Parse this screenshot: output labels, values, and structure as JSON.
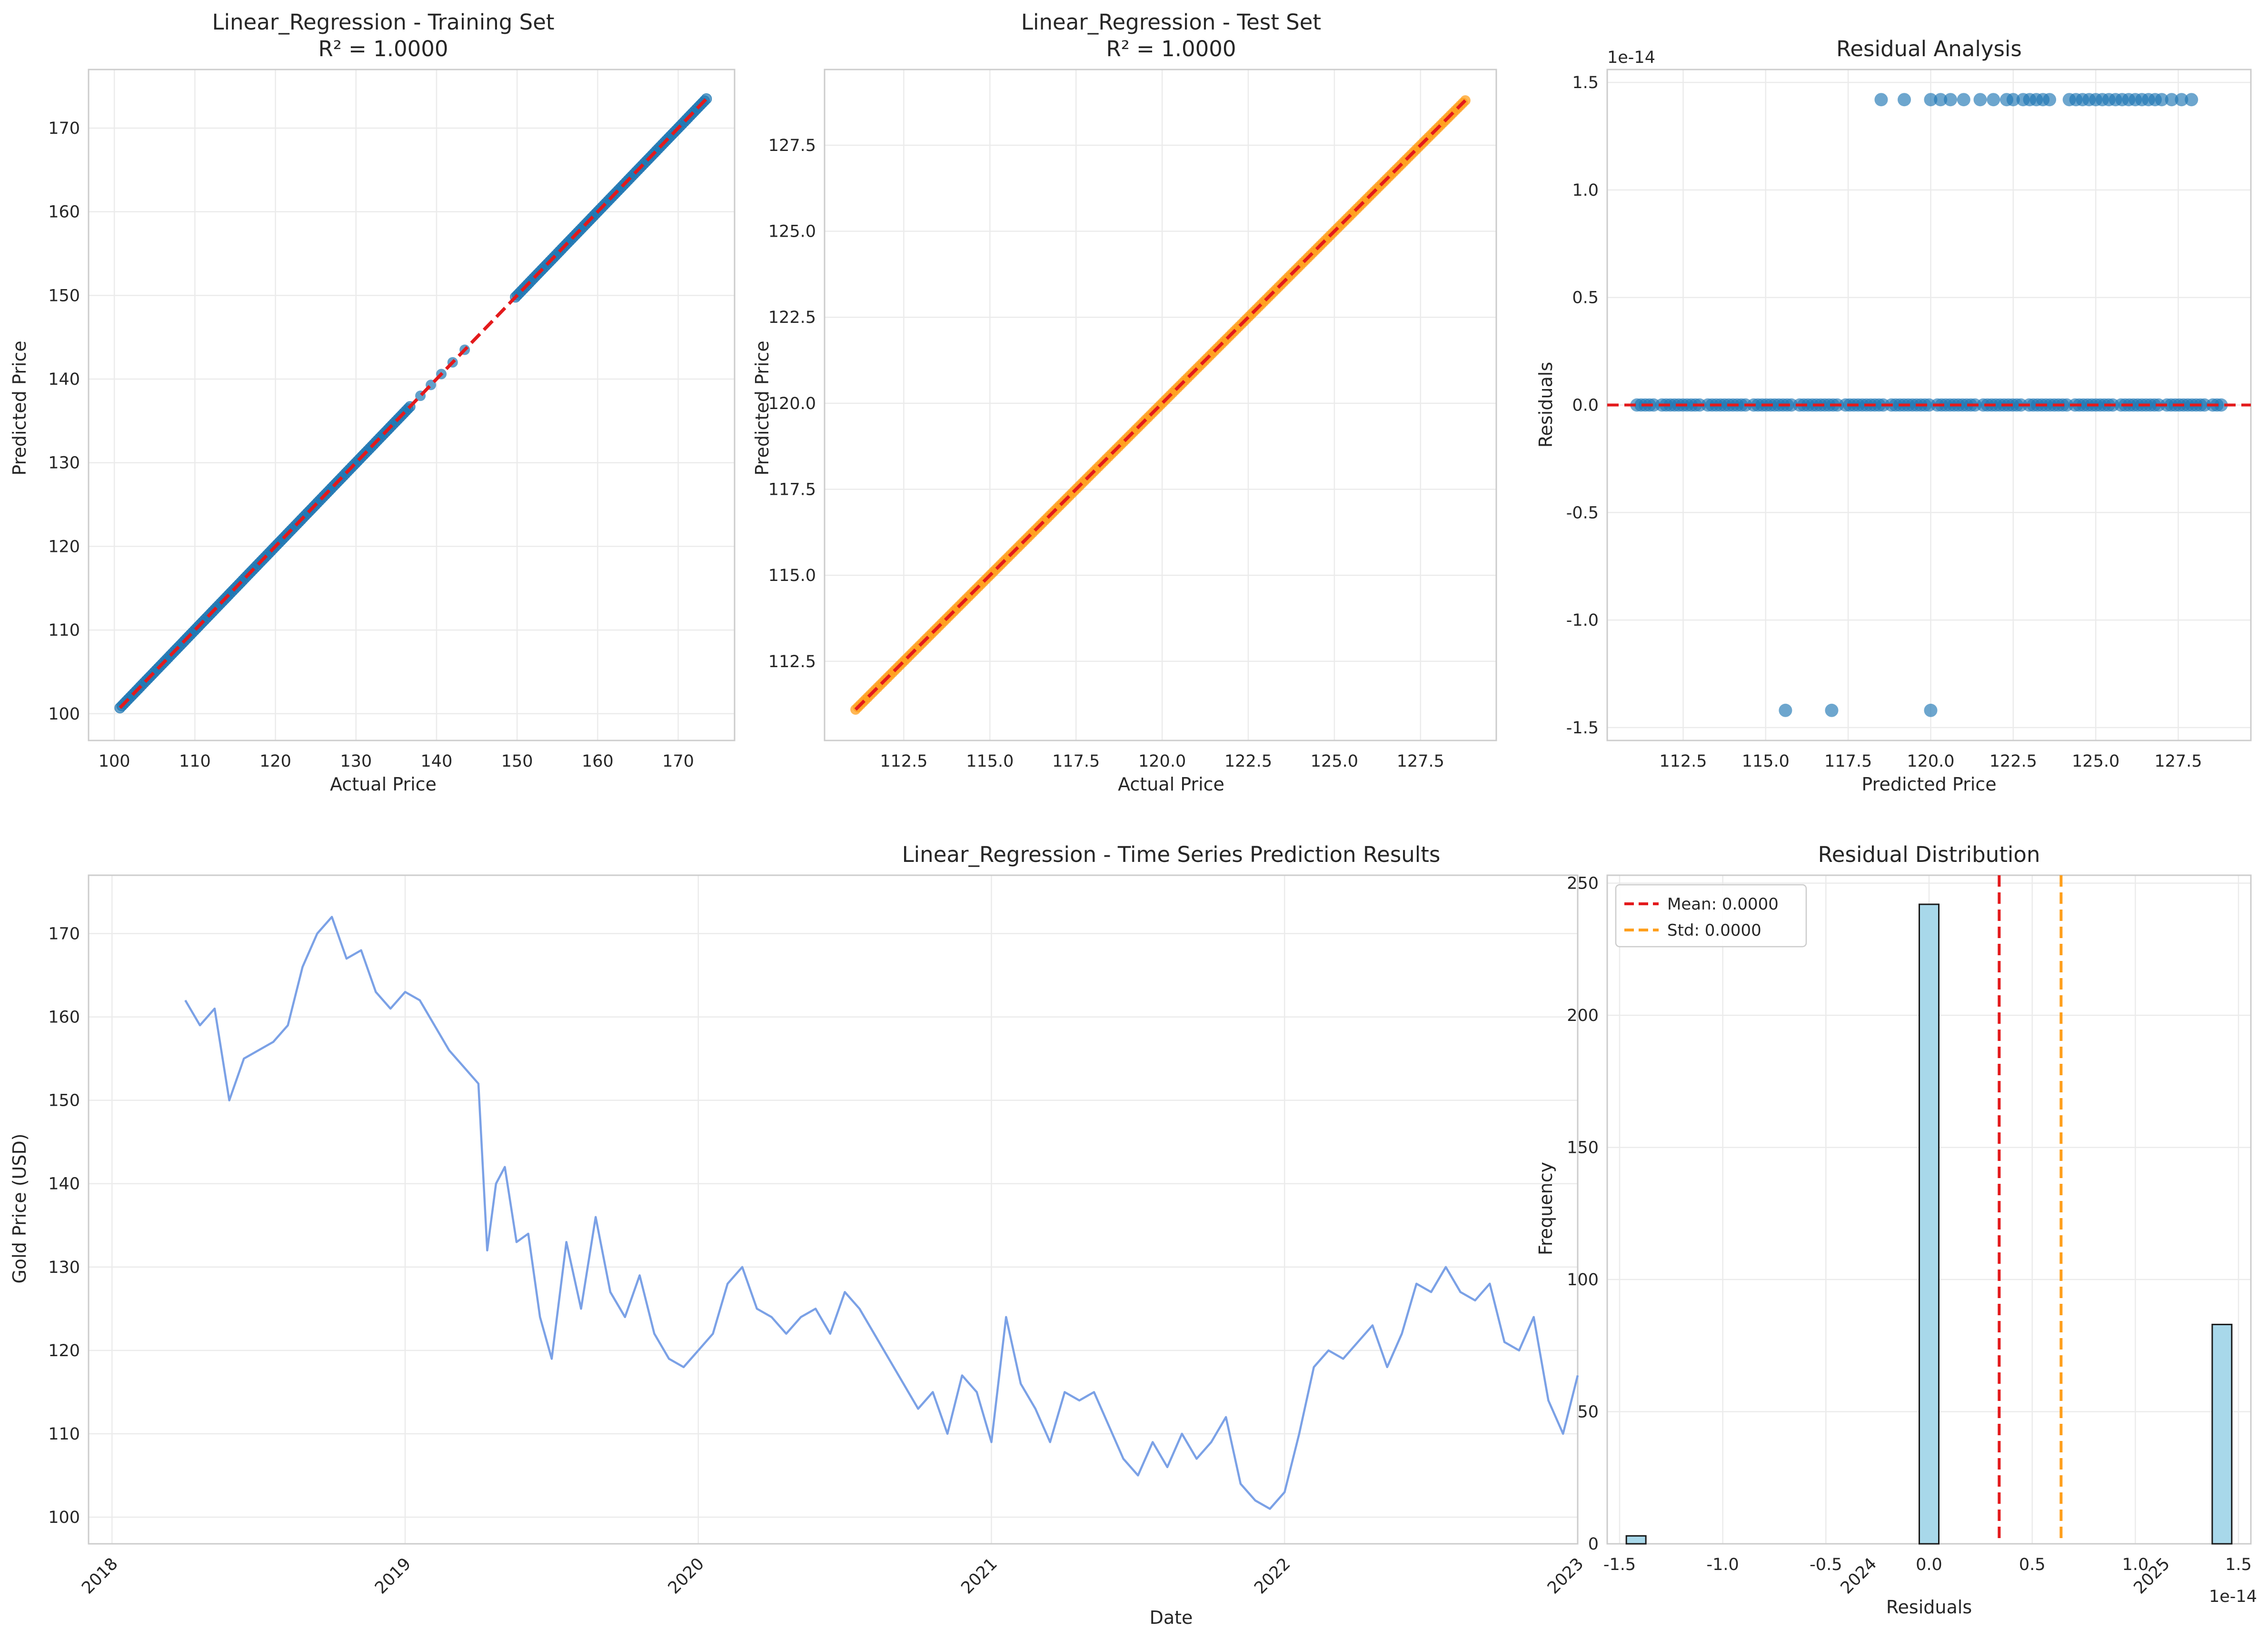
{
  "colors": {
    "blue": "#1f77b4",
    "orange": "#ff9f1c",
    "red": "#e31a1c",
    "series_line": "#7ba1e6",
    "hist_fill": "#a8d8ea",
    "grid": "#ebebeb",
    "frame": "#cccccc"
  },
  "chart_data": [
    {
      "id": "training",
      "type": "scatter",
      "title": "Linear_Regression - Training Set",
      "subtitle": "R² = 1.0000",
      "xlabel": "Actual Price",
      "ylabel": "Predicted Price",
      "xlim": [
        96.8,
        177.0
      ],
      "ylim": [
        96.8,
        177.0
      ],
      "xticks": [
        100,
        110,
        120,
        130,
        140,
        150,
        160,
        170
      ],
      "yticks": [
        100,
        110,
        120,
        130,
        140,
        150,
        160,
        170
      ],
      "grid": true,
      "series": [
        {
          "kind": "points",
          "color": "blue",
          "segments": [
            [
              100.7,
              136.7
            ],
            [
              149.8,
              173.5
            ]
          ],
          "extra_points": [
            138.0,
            139.3,
            140.6,
            142.0,
            143.5
          ]
        },
        {
          "kind": "reference",
          "style": "dashed",
          "color": "red",
          "x": [
            100.7,
            173.5
          ],
          "y": [
            100.7,
            173.5
          ]
        }
      ]
    },
    {
      "id": "test",
      "type": "scatter",
      "title": "Linear_Regression - Test Set",
      "subtitle": "R² = 1.0000",
      "xlabel": "Actual Price",
      "ylabel": "Predicted Price",
      "xlim": [
        110.2,
        129.7
      ],
      "ylim": [
        110.2,
        129.7
      ],
      "xticks": [
        "112.5",
        "115.0",
        "117.5",
        "120.0",
        "122.5",
        "125.0",
        "127.5"
      ],
      "yticks": [
        "112.5",
        "115.0",
        "117.5",
        "120.0",
        "122.5",
        "125.0",
        "127.5"
      ],
      "grid": true,
      "series": [
        {
          "kind": "points",
          "color": "orange",
          "segments": [
            [
              111.1,
              128.8
            ]
          ]
        },
        {
          "kind": "reference",
          "style": "dashed",
          "color": "red",
          "x": [
            111.1,
            128.8
          ],
          "y": [
            111.1,
            128.8
          ]
        }
      ]
    },
    {
      "id": "residual-analysis",
      "type": "scatter",
      "title": "Residual Analysis",
      "xlabel": "Predicted Price",
      "ylabel": "Residuals",
      "offset_text": "1e-14",
      "xlim": [
        110.2,
        129.7
      ],
      "ylim": [
        -1.56,
        1.56
      ],
      "xticks": [
        "112.5",
        "115.0",
        "117.5",
        "120.0",
        "122.5",
        "125.0",
        "127.5"
      ],
      "yticks": [
        "-1.5",
        "-1.0",
        "-0.5",
        "0.0",
        "0.5",
        "1.0",
        "1.5"
      ],
      "grid": true,
      "zero_line": {
        "y": 0,
        "style": "dashed",
        "color": "red"
      },
      "point_color": "blue",
      "groups": [
        {
          "y": 0.0,
          "x_range": [
            111.1,
            128.8
          ]
        },
        {
          "y": 1.42,
          "x": [
            118.5,
            119.2,
            120.0,
            120.3,
            120.6,
            121.0,
            121.5,
            121.9,
            122.3,
            122.5,
            122.8,
            123.0,
            123.2,
            123.4,
            123.6,
            124.2,
            124.4,
            124.6,
            124.8,
            125.0,
            125.2,
            125.4,
            125.6,
            125.8,
            126.0,
            126.2,
            126.4,
            126.6,
            126.8,
            127.0,
            127.3,
            127.6,
            127.9
          ]
        },
        {
          "y": -1.42,
          "x": [
            115.6,
            117.0,
            120.0
          ]
        }
      ]
    },
    {
      "id": "time-series",
      "type": "line",
      "title": "Linear_Regression - Time Series Prediction Results",
      "xlabel": "Date",
      "ylabel": "Gold Price (USD)",
      "xlim": [
        2017.92,
        2023.0
      ],
      "ylim": [
        96.8,
        177.0
      ],
      "xticks": [
        "2018",
        "2019",
        "2020",
        "2021",
        "2022",
        "2023",
        "2024",
        "2025"
      ],
      "yticks": [
        100,
        110,
        120,
        130,
        140,
        150,
        160,
        170
      ],
      "grid": true,
      "series": [
        {
          "color": "series_line",
          "x": [
            2018.25,
            2018.3,
            2018.35,
            2018.4,
            2018.45,
            2018.5,
            2018.55,
            2018.6,
            2018.65,
            2018.7,
            2018.75,
            2018.8,
            2018.85,
            2018.9,
            2018.95,
            2019.0,
            2019.05,
            2019.1,
            2019.15,
            2019.2,
            2019.25,
            2019.28,
            2019.31,
            2019.34,
            2019.38,
            2019.42,
            2019.46,
            2019.5,
            2019.55,
            2019.6,
            2019.65,
            2019.7,
            2019.75,
            2019.8,
            2019.85,
            2019.9,
            2019.95,
            2020.0,
            2020.05,
            2020.1,
            2020.15,
            2020.2,
            2020.25,
            2020.3,
            2020.35,
            2020.4,
            2020.45,
            2020.5,
            2020.55,
            2020.6,
            2020.65,
            2020.7,
            2020.75,
            2020.8,
            2020.85,
            2020.9,
            2020.95,
            2021.0,
            2021.05,
            2021.1,
            2021.15,
            2021.2,
            2021.25,
            2021.3,
            2021.35,
            2021.4,
            2021.45,
            2021.5,
            2021.55,
            2021.6,
            2021.65,
            2021.7,
            2021.75,
            2021.8,
            2021.85,
            2021.9,
            2021.95,
            2022.0,
            2022.05,
            2022.1,
            2022.15,
            2022.2,
            2022.25,
            2022.3,
            2022.35,
            2022.4,
            2022.45,
            2022.5,
            2022.55,
            2022.6,
            2022.65,
            2022.7,
            2022.75,
            2022.8,
            2022.85,
            2022.9,
            2022.95,
            2023.0
          ],
          "y": [
            162,
            159,
            161,
            150,
            155,
            156,
            157,
            159,
            166,
            170,
            172,
            167,
            168,
            163,
            161,
            163,
            162,
            159,
            156,
            154,
            152,
            132,
            140,
            142,
            133,
            134,
            124,
            119,
            133,
            125,
            136,
            127,
            124,
            129,
            122,
            119,
            118,
            120,
            122,
            128,
            130,
            125,
            124,
            122,
            124,
            125,
            122,
            127,
            125,
            122,
            119,
            116,
            113,
            115,
            110,
            117,
            115,
            109,
            124,
            116,
            113,
            109,
            115,
            114,
            115,
            111,
            107,
            105,
            109,
            106,
            110,
            107,
            109,
            112,
            104,
            102,
            101,
            103,
            110,
            118,
            120,
            119,
            121,
            123,
            118,
            122,
            128,
            127,
            130,
            127,
            126,
            128,
            121,
            120,
            124,
            114,
            110,
            117
          ]
        }
      ]
    },
    {
      "id": "residual-distribution",
      "type": "bar",
      "title": "Residual Distribution",
      "xlabel": "Residuals",
      "ylabel": "Frequency",
      "offset_text": "1e-14",
      "xlim": [
        -1.56,
        1.56
      ],
      "ylim": [
        0,
        253
      ],
      "xticks": [
        "-1.5",
        "-1.0",
        "-0.5",
        "0.0",
        "0.5",
        "1.0",
        "1.5"
      ],
      "yticks": [
        0,
        50,
        100,
        150,
        200,
        250
      ],
      "grid": true,
      "bin_width": 0.0946,
      "bars": [
        {
          "center": -1.42,
          "value": 3
        },
        {
          "center": 0.0,
          "value": 242
        },
        {
          "center": 1.42,
          "value": 83
        }
      ],
      "vlines": [
        {
          "x": 0.34,
          "color": "red",
          "style": "dashed",
          "label": "Mean: 0.0000"
        },
        {
          "x": 0.64,
          "color": "orange",
          "style": "dashed",
          "label": "Std: 0.0000"
        }
      ],
      "legend_position": "upper-left"
    }
  ]
}
